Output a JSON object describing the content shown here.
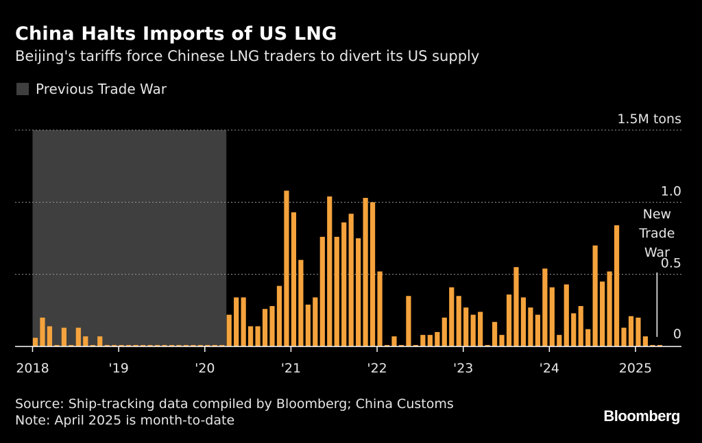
{
  "title": "China Halts Imports of US LNG",
  "subtitle": "Beijing's tariffs force Chinese LNG traders to divert its US supply",
  "legend": {
    "label": "Previous Trade War",
    "color": "#3f3f3f"
  },
  "footer": {
    "source": "Source: Ship-tracking data compiled by Bloomberg; China Customs",
    "note": "Note: April 2025 is month-to-date"
  },
  "logo": "Bloomberg",
  "colors": {
    "bar": "#f5a33d",
    "background": "#000000",
    "shade": "#3f3f3f"
  },
  "chart_data": {
    "type": "bar",
    "title": "China Halts Imports of US LNG",
    "unit": "M tons",
    "ylim": [
      0,
      1.5
    ],
    "yticks": [
      {
        "value": 0,
        "label": "0"
      },
      {
        "value": 0.5,
        "label": "0.5"
      },
      {
        "value": 1.0,
        "label": "1.0"
      },
      {
        "value": 1.5,
        "label": "1.5M tons"
      }
    ],
    "xticks": [
      {
        "date": "2018-01",
        "label": "2018"
      },
      {
        "date": "2019-01",
        "label": "'19"
      },
      {
        "date": "2020-01",
        "label": "'20"
      },
      {
        "date": "2021-01",
        "label": "'21"
      },
      {
        "date": "2022-01",
        "label": "'22"
      },
      {
        "date": "2023-01",
        "label": "'23"
      },
      {
        "date": "2024-01",
        "label": "'24"
      },
      {
        "date": "2025-01",
        "label": "2025"
      }
    ],
    "grid": true,
    "shaded_period": {
      "label": "Previous Trade War",
      "start": "2018-01",
      "end": "2020-04"
    },
    "annotation": {
      "label_lines": [
        "New",
        "Trade",
        "War"
      ],
      "date": "2025-04"
    },
    "series": [
      {
        "values": [
          {
            "date": "2018-01",
            "value": 0.06
          },
          {
            "date": "2018-02",
            "value": 0.2
          },
          {
            "date": "2018-03",
            "value": 0.14
          },
          {
            "date": "2018-04",
            "value": 0.01
          },
          {
            "date": "2018-05",
            "value": 0.13
          },
          {
            "date": "2018-06",
            "value": 0.01
          },
          {
            "date": "2018-07",
            "value": 0.13
          },
          {
            "date": "2018-08",
            "value": 0.07
          },
          {
            "date": "2018-09",
            "value": 0.01
          },
          {
            "date": "2018-10",
            "value": 0.07
          },
          {
            "date": "2018-11",
            "value": 0.01
          },
          {
            "date": "2018-12",
            "value": 0.01
          },
          {
            "date": "2019-01",
            "value": 0.01
          },
          {
            "date": "2019-02",
            "value": 0.01
          },
          {
            "date": "2019-03",
            "value": 0.01
          },
          {
            "date": "2019-04",
            "value": 0.01
          },
          {
            "date": "2019-05",
            "value": 0.01
          },
          {
            "date": "2019-06",
            "value": 0.01
          },
          {
            "date": "2019-07",
            "value": 0.01
          },
          {
            "date": "2019-08",
            "value": 0.01
          },
          {
            "date": "2019-09",
            "value": 0.01
          },
          {
            "date": "2019-10",
            "value": 0.01
          },
          {
            "date": "2019-11",
            "value": 0.01
          },
          {
            "date": "2019-12",
            "value": 0.01
          },
          {
            "date": "2020-01",
            "value": 0.01
          },
          {
            "date": "2020-02",
            "value": 0.01
          },
          {
            "date": "2020-03",
            "value": 0.01
          },
          {
            "date": "2020-04",
            "value": 0.22
          },
          {
            "date": "2020-05",
            "value": 0.34
          },
          {
            "date": "2020-06",
            "value": 0.34
          },
          {
            "date": "2020-07",
            "value": 0.14
          },
          {
            "date": "2020-08",
            "value": 0.14
          },
          {
            "date": "2020-09",
            "value": 0.26
          },
          {
            "date": "2020-10",
            "value": 0.28
          },
          {
            "date": "2020-11",
            "value": 0.42
          },
          {
            "date": "2020-12",
            "value": 1.08
          },
          {
            "date": "2021-01",
            "value": 0.93
          },
          {
            "date": "2021-02",
            "value": 0.6
          },
          {
            "date": "2021-03",
            "value": 0.29
          },
          {
            "date": "2021-04",
            "value": 0.34
          },
          {
            "date": "2021-05",
            "value": 0.76
          },
          {
            "date": "2021-06",
            "value": 1.04
          },
          {
            "date": "2021-07",
            "value": 0.76
          },
          {
            "date": "2021-08",
            "value": 0.86
          },
          {
            "date": "2021-09",
            "value": 0.92
          },
          {
            "date": "2021-10",
            "value": 0.75
          },
          {
            "date": "2021-11",
            "value": 1.03
          },
          {
            "date": "2021-12",
            "value": 1.0
          },
          {
            "date": "2022-01",
            "value": 0.52
          },
          {
            "date": "2022-02",
            "value": 0.01
          },
          {
            "date": "2022-03",
            "value": 0.07
          },
          {
            "date": "2022-04",
            "value": 0.01
          },
          {
            "date": "2022-05",
            "value": 0.35
          },
          {
            "date": "2022-06",
            "value": 0.01
          },
          {
            "date": "2022-07",
            "value": 0.08
          },
          {
            "date": "2022-08",
            "value": 0.08
          },
          {
            "date": "2022-09",
            "value": 0.1
          },
          {
            "date": "2022-10",
            "value": 0.2
          },
          {
            "date": "2022-11",
            "value": 0.41
          },
          {
            "date": "2022-12",
            "value": 0.35
          },
          {
            "date": "2023-01",
            "value": 0.27
          },
          {
            "date": "2023-02",
            "value": 0.22
          },
          {
            "date": "2023-03",
            "value": 0.24
          },
          {
            "date": "2023-04",
            "value": 0.01
          },
          {
            "date": "2023-05",
            "value": 0.17
          },
          {
            "date": "2023-06",
            "value": 0.08
          },
          {
            "date": "2023-07",
            "value": 0.36
          },
          {
            "date": "2023-08",
            "value": 0.55
          },
          {
            "date": "2023-09",
            "value": 0.34
          },
          {
            "date": "2023-10",
            "value": 0.27
          },
          {
            "date": "2023-11",
            "value": 0.22
          },
          {
            "date": "2023-12",
            "value": 0.54
          },
          {
            "date": "2024-01",
            "value": 0.41
          },
          {
            "date": "2024-02",
            "value": 0.08
          },
          {
            "date": "2024-03",
            "value": 0.43
          },
          {
            "date": "2024-04",
            "value": 0.23
          },
          {
            "date": "2024-05",
            "value": 0.28
          },
          {
            "date": "2024-06",
            "value": 0.12
          },
          {
            "date": "2024-07",
            "value": 0.7
          },
          {
            "date": "2024-08",
            "value": 0.45
          },
          {
            "date": "2024-09",
            "value": 0.52
          },
          {
            "date": "2024-10",
            "value": 0.84
          },
          {
            "date": "2024-11",
            "value": 0.13
          },
          {
            "date": "2024-12",
            "value": 0.21
          },
          {
            "date": "2025-01",
            "value": 0.2
          },
          {
            "date": "2025-02",
            "value": 0.07
          },
          {
            "date": "2025-03",
            "value": 0.01
          },
          {
            "date": "2025-04",
            "value": 0.01
          }
        ]
      }
    ]
  }
}
